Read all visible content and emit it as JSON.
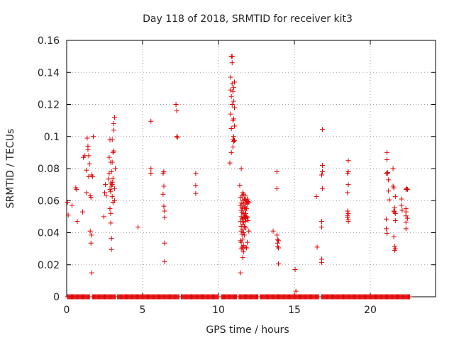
{
  "chart_data": {
    "type": "scatter",
    "title": "Day 118 of 2018, SRMTID for receiver kit3",
    "xlabel": "GPS time / hours",
    "ylabel": "SRMTID / TECUs",
    "xlim": [
      0,
      24.3
    ],
    "ylim": [
      0,
      0.16
    ],
    "x_ticks": [
      0,
      5,
      10,
      15,
      20
    ],
    "x_tick_labels": [
      "0",
      "5",
      "10",
      "15",
      "20"
    ],
    "y_ticks": [
      0,
      0.02,
      0.04,
      0.06,
      0.08,
      0.1,
      0.12,
      0.14,
      0.16
    ],
    "y_tick_labels": [
      "0",
      "0.02",
      "0.04",
      "0.06",
      "0.08",
      "0.1",
      "0.12",
      "0.14",
      "0.16"
    ],
    "grid": true,
    "marker": "+",
    "series": [
      {
        "name": "SRMTID",
        "color": "#e00000",
        "zero_segments": [
          [
            0.05,
            1.5
          ],
          [
            1.7,
            3.2
          ],
          [
            3.35,
            7.4
          ],
          [
            7.55,
            10.0
          ],
          [
            10.2,
            11.2
          ],
          [
            11.35,
            12.6
          ],
          [
            12.75,
            16.6
          ],
          [
            16.8,
            22.6
          ]
        ],
        "points": [
          [
            0.05,
            0.059
          ],
          [
            0.1,
            0.051
          ],
          [
            0.35,
            0.057
          ],
          [
            0.6,
            0.068
          ],
          [
            0.65,
            0.067
          ],
          [
            0.7,
            0.047
          ],
          [
            1.05,
            0.053
          ],
          [
            1.1,
            0.087
          ],
          [
            1.2,
            0.088
          ],
          [
            1.3,
            0.065
          ],
          [
            1.3,
            0.079
          ],
          [
            1.35,
            0.099
          ],
          [
            1.4,
            0.094
          ],
          [
            1.4,
            0.092
          ],
          [
            1.45,
            0.088
          ],
          [
            1.45,
            0.075
          ],
          [
            1.5,
            0.083
          ],
          [
            1.55,
            0.041
          ],
          [
            1.55,
            0.063
          ],
          [
            1.6,
            0.062
          ],
          [
            1.6,
            0.0335
          ],
          [
            1.62,
            0.0385
          ],
          [
            1.65,
            0.015
          ],
          [
            1.65,
            0.076
          ],
          [
            1.7,
            0.075
          ],
          [
            1.75,
            0.1
          ],
          [
            2.45,
            0.05
          ],
          [
            2.5,
            0.065
          ],
          [
            2.55,
            0.07
          ],
          [
            2.6,
            0.063
          ],
          [
            2.75,
            0.0735
          ],
          [
            2.8,
            0.077
          ],
          [
            2.8,
            0.087
          ],
          [
            2.85,
            0.098
          ],
          [
            2.85,
            0.067
          ],
          [
            2.85,
            0.055
          ],
          [
            2.9,
            0.084
          ],
          [
            2.9,
            0.071
          ],
          [
            2.9,
            0.0655
          ],
          [
            2.9,
            0.052
          ],
          [
            2.9,
            0.046
          ],
          [
            2.95,
            0.0365
          ],
          [
            2.95,
            0.0295
          ],
          [
            2.95,
            0.069
          ],
          [
            2.95,
            0.078
          ],
          [
            3.0,
            0.084
          ],
          [
            3.0,
            0.098
          ],
          [
            3.0,
            0.07
          ],
          [
            3.0,
            0.0625
          ],
          [
            3.0,
            0.0715
          ],
          [
            3.05,
            0.09
          ],
          [
            3.05,
            0.059
          ],
          [
            3.05,
            0.074
          ],
          [
            3.1,
            0.108
          ],
          [
            3.1,
            0.104
          ],
          [
            3.1,
            0.091
          ],
          [
            3.15,
            0.112
          ],
          [
            3.15,
            0.0675
          ],
          [
            3.15,
            0.06
          ],
          [
            3.2,
            0.08
          ],
          [
            4.7,
            0.0435
          ],
          [
            5.55,
            0.1095
          ],
          [
            5.55,
            0.08
          ],
          [
            5.55,
            0.077
          ],
          [
            6.35,
            0.077
          ],
          [
            6.35,
            0.064
          ],
          [
            6.4,
            0.078
          ],
          [
            6.4,
            0.069
          ],
          [
            6.4,
            0.0565
          ],
          [
            6.45,
            0.0535
          ],
          [
            6.45,
            0.0495
          ],
          [
            6.45,
            0.0335
          ],
          [
            6.45,
            0.022
          ],
          [
            7.2,
            0.12
          ],
          [
            7.25,
            0.116
          ],
          [
            7.25,
            0.1
          ],
          [
            7.3,
            0.0995
          ],
          [
            8.5,
            0.077
          ],
          [
            8.5,
            0.0695
          ],
          [
            8.5,
            0.0645
          ],
          [
            10.75,
            0.0835
          ],
          [
            10.8,
            0.137
          ],
          [
            10.8,
            0.129
          ],
          [
            10.8,
            0.114
          ],
          [
            10.85,
            0.15
          ],
          [
            10.85,
            0.125
          ],
          [
            10.85,
            0.105
          ],
          [
            10.85,
            0.09
          ],
          [
            10.9,
            0.15
          ],
          [
            10.9,
            0.146
          ],
          [
            10.9,
            0.133
          ],
          [
            10.9,
            0.12
          ],
          [
            10.95,
            0.128
          ],
          [
            10.95,
            0.11
          ],
          [
            10.95,
            0.098
          ],
          [
            10.95,
            0.0935
          ],
          [
            11.0,
            0.1305
          ],
          [
            11.0,
            0.122
          ],
          [
            11.0,
            0.111
          ],
          [
            11.0,
            0.1
          ],
          [
            11.0,
            0.097
          ],
          [
            11.05,
            0.134
          ],
          [
            11.05,
            0.118
          ],
          [
            11.05,
            0.1065
          ],
          [
            11.05,
            0.0975
          ],
          [
            11.4,
            0.0695
          ],
          [
            11.45,
            0.062
          ],
          [
            11.45,
            0.057
          ],
          [
            11.45,
            0.047
          ],
          [
            11.45,
            0.035
          ],
          [
            11.45,
            0.015
          ],
          [
            11.5,
            0.08
          ],
          [
            11.5,
            0.0585
          ],
          [
            11.5,
            0.054
          ],
          [
            11.5,
            0.05
          ],
          [
            11.5,
            0.044
          ],
          [
            11.5,
            0.041
          ],
          [
            11.5,
            0.034
          ],
          [
            11.5,
            0.03
          ],
          [
            11.55,
            0.063
          ],
          [
            11.55,
            0.056
          ],
          [
            11.55,
            0.0525
          ],
          [
            11.55,
            0.0485
          ],
          [
            11.55,
            0.039
          ],
          [
            11.55,
            0.031
          ],
          [
            11.6,
            0.065
          ],
          [
            11.6,
            0.06
          ],
          [
            11.6,
            0.055
          ],
          [
            11.6,
            0.049
          ],
          [
            11.6,
            0.045
          ],
          [
            11.6,
            0.042
          ],
          [
            11.6,
            0.036
          ],
          [
            11.6,
            0.03
          ],
          [
            11.6,
            0.0245
          ],
          [
            11.65,
            0.064
          ],
          [
            11.65,
            0.058
          ],
          [
            11.65,
            0.052
          ],
          [
            11.65,
            0.0465
          ],
          [
            11.65,
            0.04
          ],
          [
            11.65,
            0.032
          ],
          [
            11.65,
            0.028
          ],
          [
            11.7,
            0.061
          ],
          [
            11.7,
            0.056
          ],
          [
            11.7,
            0.051
          ],
          [
            11.7,
            0.0495
          ],
          [
            11.7,
            0.044
          ],
          [
            11.7,
            0.0385
          ],
          [
            11.75,
            0.063
          ],
          [
            11.75,
            0.059
          ],
          [
            11.75,
            0.054
          ],
          [
            11.75,
            0.05
          ],
          [
            11.75,
            0.047
          ],
          [
            11.75,
            0.031
          ],
          [
            11.8,
            0.0605
          ],
          [
            11.8,
            0.056
          ],
          [
            11.8,
            0.052
          ],
          [
            11.8,
            0.049
          ],
          [
            11.8,
            0.043
          ],
          [
            11.85,
            0.059
          ],
          [
            11.85,
            0.055
          ],
          [
            11.85,
            0.05
          ],
          [
            11.85,
            0.0305
          ],
          [
            11.9,
            0.061
          ],
          [
            11.9,
            0.058
          ],
          [
            11.9,
            0.0495
          ],
          [
            11.9,
            0.034
          ],
          [
            11.95,
            0.0595
          ],
          [
            11.95,
            0.0475
          ],
          [
            12.0,
            0.059
          ],
          [
            12.0,
            0.041
          ],
          [
            13.6,
            0.041
          ],
          [
            13.85,
            0.078
          ],
          [
            13.85,
            0.0675
          ],
          [
            13.85,
            0.0385
          ],
          [
            13.9,
            0.0355
          ],
          [
            13.9,
            0.0335
          ],
          [
            13.9,
            0.0315
          ],
          [
            13.95,
            0.035
          ],
          [
            13.95,
            0.0305
          ],
          [
            13.95,
            0.0205
          ],
          [
            15.05,
            0.017
          ],
          [
            15.1,
            0.0035
          ],
          [
            16.45,
            0.0625
          ],
          [
            16.5,
            0.031
          ],
          [
            16.8,
            0.076
          ],
          [
            16.8,
            0.047
          ],
          [
            16.8,
            0.0435
          ],
          [
            16.8,
            0.0235
          ],
          [
            16.8,
            0.0215
          ],
          [
            16.85,
            0.1045
          ],
          [
            16.85,
            0.082
          ],
          [
            16.85,
            0.078
          ],
          [
            16.85,
            0.0675
          ],
          [
            18.5,
            0.077
          ],
          [
            18.5,
            0.065
          ],
          [
            18.5,
            0.0535
          ],
          [
            18.5,
            0.0505
          ],
          [
            18.5,
            0.0495
          ],
          [
            18.55,
            0.085
          ],
          [
            18.55,
            0.078
          ],
          [
            18.55,
            0.07
          ],
          [
            18.55,
            0.052
          ],
          [
            18.55,
            0.048
          ],
          [
            18.55,
            0.047
          ],
          [
            21.05,
            0.077
          ],
          [
            21.05,
            0.0485
          ],
          [
            21.05,
            0.0425
          ],
          [
            21.1,
            0.0395
          ],
          [
            21.1,
            0.09
          ],
          [
            21.1,
            0.0855
          ],
          [
            21.15,
            0.0775
          ],
          [
            21.15,
            0.077
          ],
          [
            21.2,
            0.073
          ],
          [
            21.2,
            0.066
          ],
          [
            21.25,
            0.0605
          ],
          [
            21.5,
            0.08
          ],
          [
            21.5,
            0.069
          ],
          [
            21.55,
            0.068
          ],
          [
            21.55,
            0.0535
          ],
          [
            21.55,
            0.0375
          ],
          [
            21.6,
            0.0555
          ],
          [
            21.6,
            0.053
          ],
          [
            21.6,
            0.0315
          ],
          [
            21.6,
            0.029
          ],
          [
            21.65,
            0.0625
          ],
          [
            21.65,
            0.052
          ],
          [
            21.65,
            0.0475
          ],
          [
            21.65,
            0.03
          ],
          [
            22.05,
            0.061
          ],
          [
            22.05,
            0.057
          ],
          [
            22.1,
            0.054
          ],
          [
            22.35,
            0.067
          ],
          [
            22.35,
            0.055
          ],
          [
            22.35,
            0.053
          ],
          [
            22.35,
            0.0505
          ],
          [
            22.35,
            0.0465
          ],
          [
            22.35,
            0.0425
          ],
          [
            22.4,
            0.0675
          ],
          [
            22.45,
            0.067
          ],
          [
            22.45,
            0.049
          ]
        ]
      }
    ]
  }
}
